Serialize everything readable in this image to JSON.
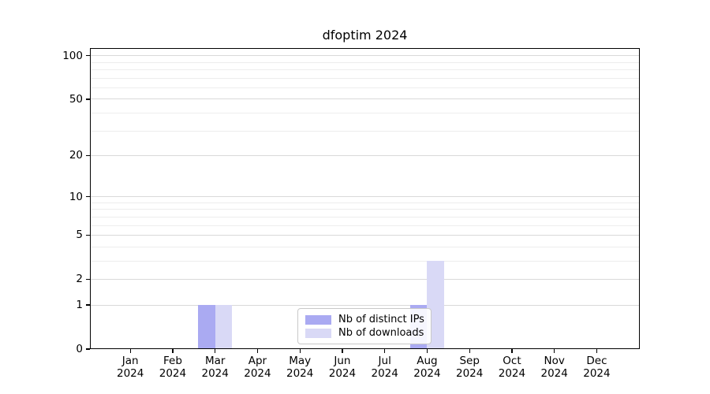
{
  "chart_data": {
    "type": "bar",
    "title": "dfoptim 2024",
    "categories": [
      "Jan",
      "Feb",
      "Mar",
      "Apr",
      "May",
      "Jun",
      "Jul",
      "Aug",
      "Sep",
      "Oct",
      "Nov",
      "Dec"
    ],
    "year_label": "2024",
    "series": [
      {
        "name": "Nb of distinct IPs",
        "color": "#aaaaf2",
        "values": [
          0,
          0,
          1,
          0,
          0,
          0,
          0,
          1,
          0,
          0,
          0,
          0
        ]
      },
      {
        "name": "Nb of downloads",
        "color": "#d9d9f6",
        "values": [
          0,
          0,
          1,
          0,
          0,
          0,
          0,
          3,
          0,
          0,
          0,
          0
        ]
      }
    ],
    "y_scale": "log1p",
    "ylim": [
      0,
      113
    ],
    "y_major_ticks": [
      0,
      1,
      2,
      5,
      10,
      20,
      50,
      100
    ],
    "y_minor_gridlines": [
      3,
      4,
      6,
      7,
      8,
      9,
      30,
      40,
      60,
      70,
      80,
      90
    ],
    "grid": "horizontal",
    "legend_position": "bottom-center"
  }
}
